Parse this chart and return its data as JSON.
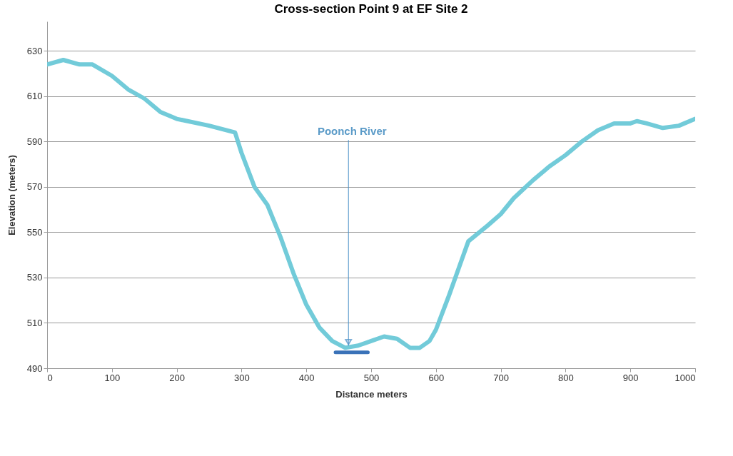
{
  "chart_data": {
    "type": "line",
    "title": "Cross-section Point 9 at EF Site 2",
    "xlabel": "Distance meters",
    "ylabel": "Elevation (meters)",
    "xlim": [
      0,
      1000
    ],
    "xticks": [
      0,
      100,
      200,
      300,
      400,
      500,
      600,
      700,
      800,
      900,
      1000
    ],
    "ylim": [
      490,
      643
    ],
    "yticks": [
      490,
      510,
      530,
      550,
      570,
      590,
      610,
      630
    ],
    "grid": "y",
    "annotations": [
      {
        "text": "Poonch River",
        "x": 465,
        "y": 500
      }
    ],
    "series": [
      {
        "color": "#72cbd9",
        "x": [
          0,
          25,
          50,
          70,
          100,
          125,
          150,
          175,
          200,
          250,
          290,
          300,
          320,
          340,
          360,
          380,
          400,
          420,
          440,
          460,
          480,
          500,
          520,
          540,
          560,
          575,
          590,
          600,
          620,
          640,
          650,
          680,
          700,
          720,
          750,
          775,
          800,
          825,
          850,
          875,
          900,
          910,
          925,
          950,
          975,
          1000
        ],
        "values": [
          624,
          626,
          624,
          624,
          619,
          613,
          609,
          603,
          600,
          597,
          594,
          585,
          570,
          562,
          548,
          532,
          518,
          508,
          502,
          499,
          500,
          502,
          504,
          503,
          499,
          499,
          502,
          507,
          522,
          538,
          546,
          553,
          558,
          565,
          573,
          579,
          584,
          590,
          595,
          598,
          598,
          599,
          598,
          596,
          597,
          600
        ]
      },
      {
        "color": "#3a72b8",
        "x": [
          445,
          495
        ],
        "values": [
          497,
          497
        ]
      }
    ]
  }
}
